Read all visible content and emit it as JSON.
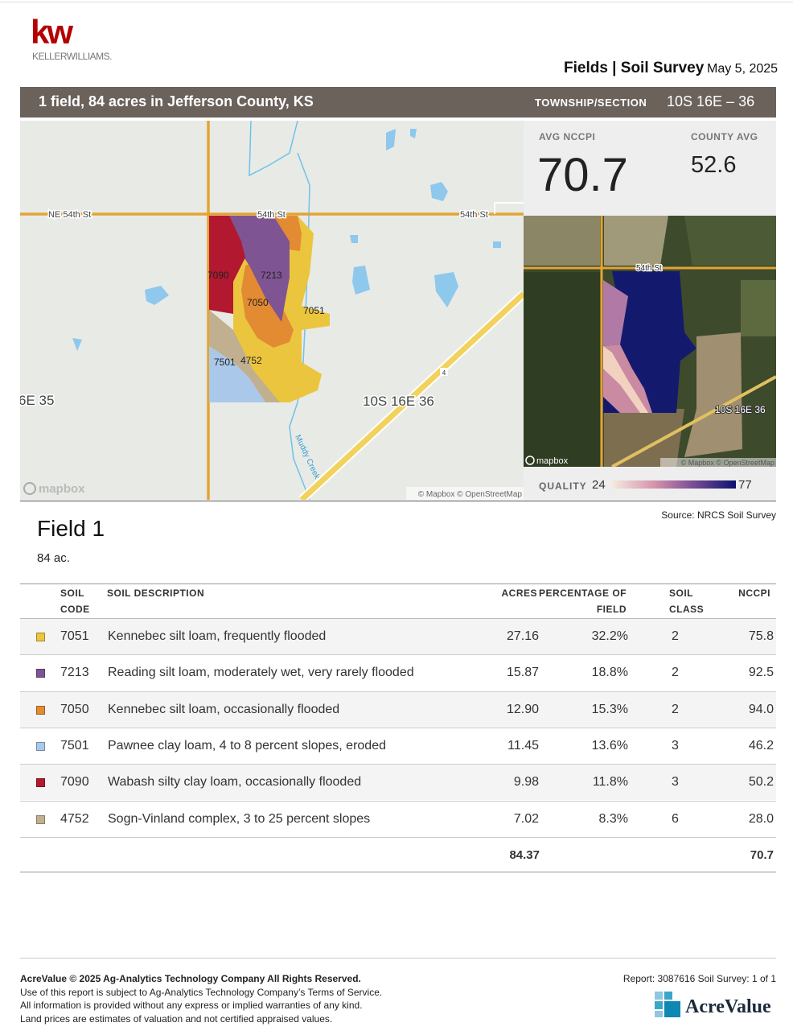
{
  "header": {
    "logo_initials": "kw",
    "logo_name": "KELLERWILLIAMS.",
    "report_title": "Fields | Soil Survey",
    "date": "May 5, 2025"
  },
  "banner": {
    "summary": "1 field, 84 acres in Jefferson County, KS",
    "township_label": "TOWNSHIP/SECTION",
    "township_value": "10S 16E – 36"
  },
  "map": {
    "roads": [
      "NE 54th St",
      "54th St",
      "54th St"
    ],
    "soil_labels": [
      "7090",
      "7213",
      "7050",
      "7051",
      "7501",
      "4752"
    ],
    "sections": [
      "10S 16E 36",
      "6E 35"
    ],
    "creek": "Muddy Creek",
    "route": "4",
    "brand": "mapbox",
    "attribution": "© Mapbox © OpenStreetMap"
  },
  "stats": {
    "avg_label": "AVG NCCPI",
    "avg_value": "70.7",
    "county_label": "COUNTY AVG",
    "county_value": "52.6"
  },
  "satellite": {
    "road": "54th St",
    "section": "10S 16E 36",
    "brand": "mapbox",
    "attribution": "© Mapbox © OpenStreetMap"
  },
  "quality": {
    "label": "QUALITY",
    "min": "24",
    "max": "77"
  },
  "source": "Source: NRCS Soil Survey",
  "field": {
    "name": "Field 1",
    "acres": "84 ac."
  },
  "table": {
    "headers": [
      [
        "SOIL",
        "CODE"
      ],
      [
        "SOIL DESCRIPTION"
      ],
      [
        "ACRES"
      ],
      [
        "PERCENTAGE OF",
        "FIELD"
      ],
      [
        "SOIL",
        "CLASS"
      ],
      [
        "NCCPI"
      ]
    ],
    "rows": [
      {
        "color": "#ecc53e",
        "code": "7051",
        "description": "Kennebec silt loam, frequently flooded",
        "acres": "27.16",
        "percentage": "32.2%",
        "class": "2",
        "nccpi": "75.8"
      },
      {
        "color": "#7e5592",
        "code": "7213",
        "description": "Reading silt loam, moderately wet, very rarely flooded",
        "acres": "15.87",
        "percentage": "18.8%",
        "class": "2",
        "nccpi": "92.5"
      },
      {
        "color": "#e38b32",
        "code": "7050",
        "description": "Kennebec silt loam, occasionally flooded",
        "acres": "12.90",
        "percentage": "15.3%",
        "class": "2",
        "nccpi": "94.0"
      },
      {
        "color": "#aac8ea",
        "code": "7501",
        "description": "Pawnee clay loam, 4 to 8 percent slopes, eroded",
        "acres": "11.45",
        "percentage": "13.6%",
        "class": "3",
        "nccpi": "46.2"
      },
      {
        "color": "#b2182f",
        "code": "7090",
        "description": "Wabash silty clay loam, occasionally flooded",
        "acres": "9.98",
        "percentage": "11.8%",
        "class": "3",
        "nccpi": "50.2"
      },
      {
        "color": "#c0b08f",
        "code": "4752",
        "description": "Sogn-Vinland complex, 3 to 25 percent slopes",
        "acres": "7.02",
        "percentage": "8.3%",
        "class": "6",
        "nccpi": "28.0"
      }
    ],
    "total": {
      "acres": "84.37",
      "nccpi": "70.7"
    }
  },
  "footer": {
    "copyright": "AcreValue © 2025 Ag-Analytics Technology Company All Rights Reserved.",
    "lines": [
      "Use of this report is subject to Ag-Analytics Technology Company’s Terms of Service.",
      "All information is provided without any express or implied warranties of any kind.",
      "Land prices are estimates of valuation and not certified appraised values."
    ],
    "report": "Report: 3087616 Soil Survey: 1 of 1",
    "brand": "AcreValue"
  }
}
